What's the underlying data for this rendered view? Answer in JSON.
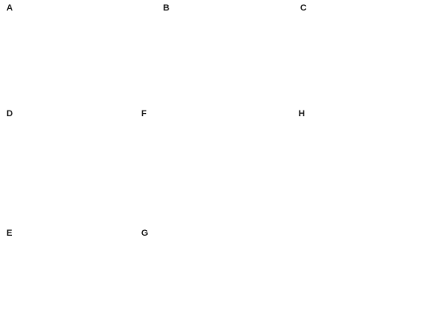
{
  "figure": {
    "panels": [
      {
        "id": "A",
        "label": "A"
      },
      {
        "id": "B",
        "label": "B"
      },
      {
        "id": "C",
        "label": "C"
      },
      {
        "id": "D",
        "label": "D"
      },
      {
        "id": "E",
        "label": "E"
      },
      {
        "id": "F",
        "label": "F"
      },
      {
        "id": "G",
        "label": "G"
      },
      {
        "id": "H",
        "label": "H"
      }
    ]
  }
}
